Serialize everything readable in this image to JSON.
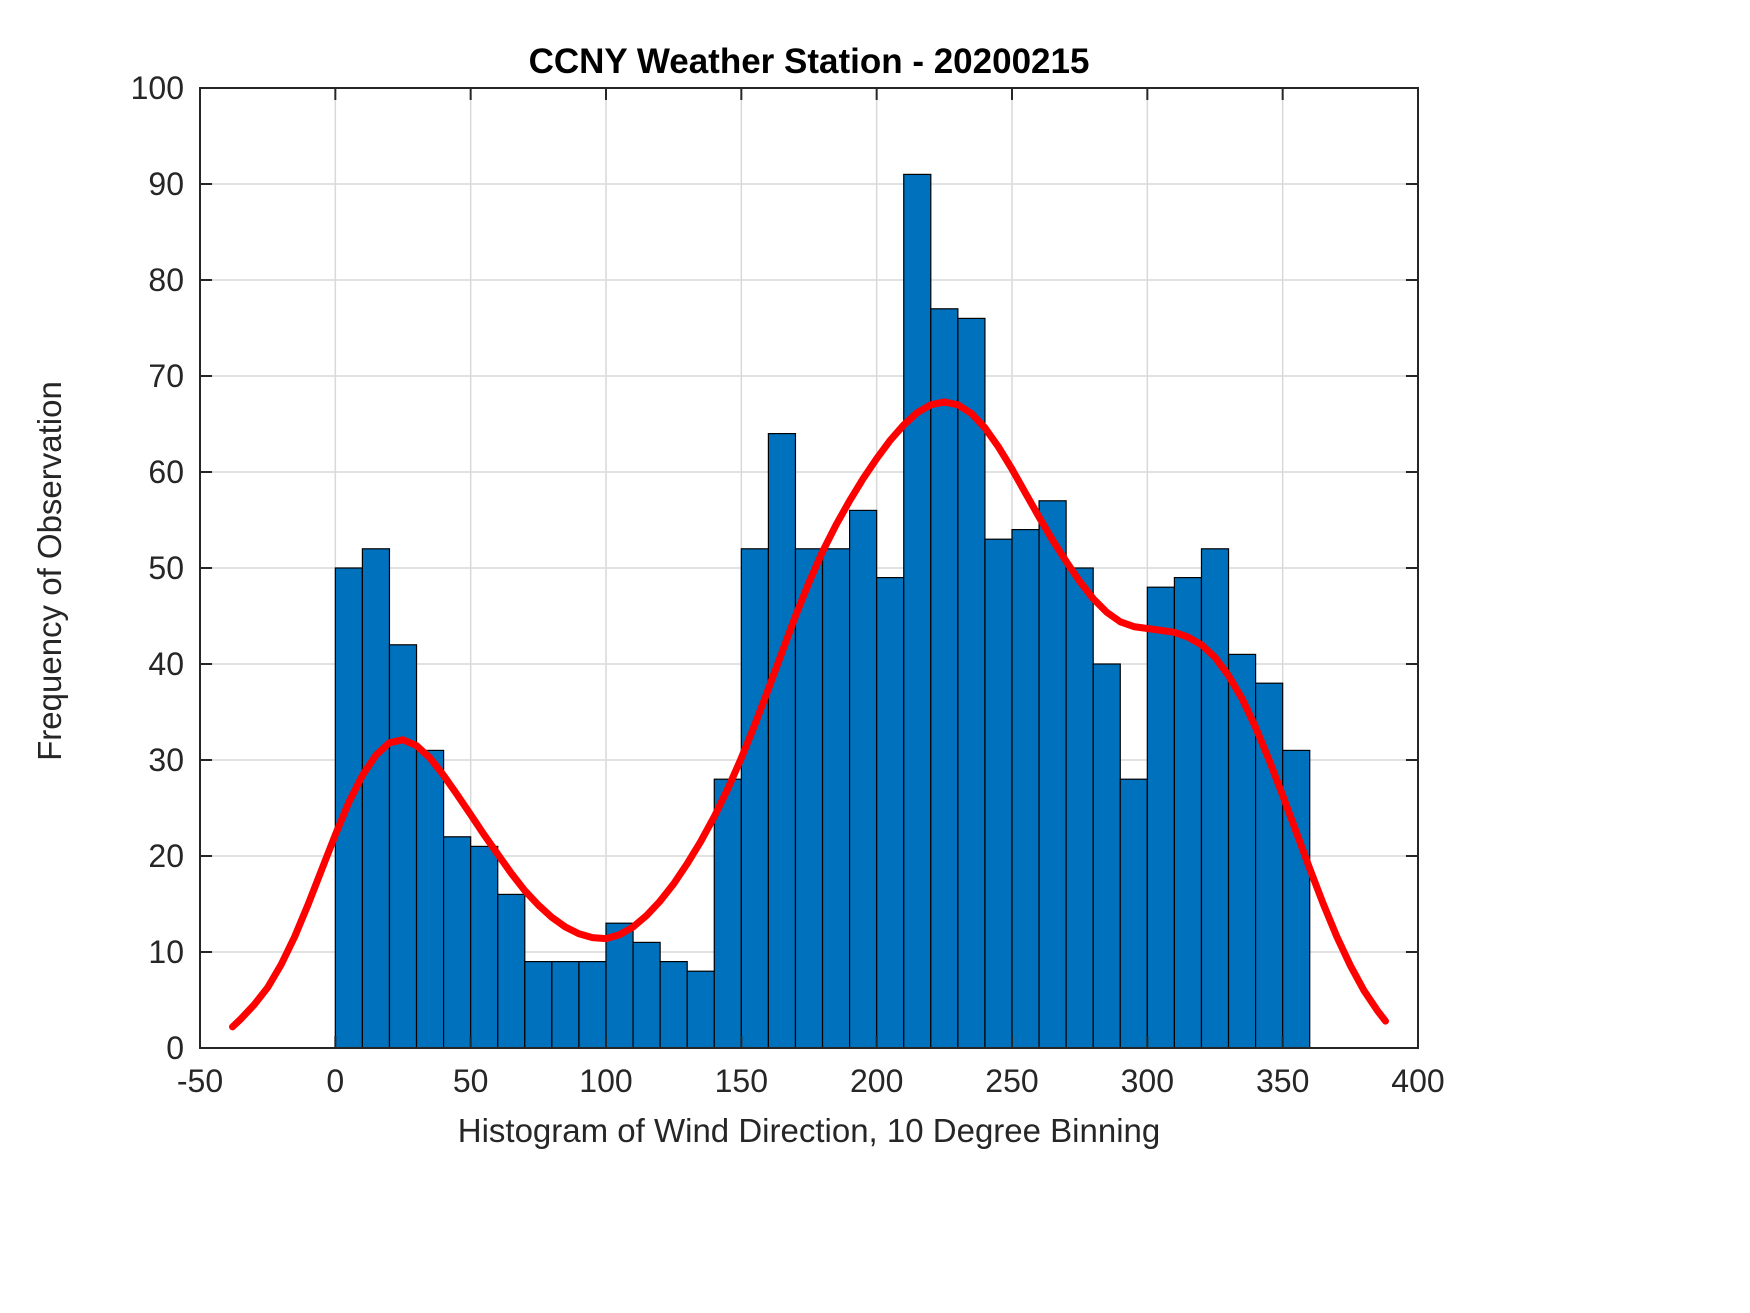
{
  "chart_data": {
    "type": "bar",
    "title": "CCNY Weather Station - 20200215",
    "xlabel": "Histogram of Wind Direction, 10 Degree Binning",
    "ylabel": "Frequency of Observation",
    "xlim": [
      -50,
      400
    ],
    "ylim": [
      0,
      100
    ],
    "x_ticks": [
      -50,
      0,
      50,
      100,
      150,
      200,
      250,
      300,
      350,
      400
    ],
    "y_ticks": [
      0,
      10,
      20,
      30,
      40,
      50,
      60,
      70,
      80,
      90,
      100
    ],
    "grid": true,
    "legend_position": "none",
    "bin_start": 0,
    "bin_width": 10,
    "bar_color": "#0072BD",
    "bar_edge_color": "#000000",
    "grid_color": "#d9d9d9",
    "axis_color": "#262626",
    "values": [
      50,
      52,
      42,
      31,
      22,
      21,
      16,
      9,
      9,
      9,
      13,
      11,
      9,
      8,
      28,
      52,
      64,
      52,
      52,
      56,
      49,
      91,
      77,
      76,
      53,
      54,
      57,
      50,
      40,
      28,
      48,
      49,
      52,
      41,
      38,
      31
    ],
    "fit_curve": {
      "name": "density-fit",
      "color": "#ff0000",
      "width": 7,
      "points": [
        [
          -38,
          2.2
        ],
        [
          -35,
          3.0
        ],
        [
          -30,
          4.5
        ],
        [
          -25,
          6.3
        ],
        [
          -20,
          8.7
        ],
        [
          -15,
          11.6
        ],
        [
          -10,
          15.0
        ],
        [
          -5,
          18.6
        ],
        [
          0,
          22.2
        ],
        [
          5,
          25.6
        ],
        [
          10,
          28.4
        ],
        [
          15,
          30.5
        ],
        [
          20,
          31.8
        ],
        [
          25,
          32.1
        ],
        [
          30,
          31.5
        ],
        [
          35,
          30.2
        ],
        [
          40,
          28.4
        ],
        [
          45,
          26.4
        ],
        [
          50,
          24.3
        ],
        [
          55,
          22.2
        ],
        [
          60,
          20.2
        ],
        [
          65,
          18.2
        ],
        [
          70,
          16.4
        ],
        [
          75,
          14.9
        ],
        [
          80,
          13.6
        ],
        [
          85,
          12.6
        ],
        [
          90,
          11.9
        ],
        [
          95,
          11.5
        ],
        [
          100,
          11.4
        ],
        [
          105,
          11.8
        ],
        [
          110,
          12.6
        ],
        [
          115,
          13.8
        ],
        [
          120,
          15.3
        ],
        [
          125,
          17.1
        ],
        [
          130,
          19.2
        ],
        [
          135,
          21.5
        ],
        [
          140,
          24.1
        ],
        [
          145,
          27.0
        ],
        [
          150,
          30.2
        ],
        [
          155,
          33.7
        ],
        [
          160,
          37.4
        ],
        [
          165,
          41.2
        ],
        [
          170,
          45.0
        ],
        [
          175,
          48.5
        ],
        [
          180,
          51.7
        ],
        [
          185,
          54.5
        ],
        [
          190,
          57.0
        ],
        [
          195,
          59.3
        ],
        [
          200,
          61.4
        ],
        [
          205,
          63.3
        ],
        [
          210,
          64.9
        ],
        [
          215,
          66.2
        ],
        [
          220,
          67.0
        ],
        [
          225,
          67.3
        ],
        [
          230,
          67.0
        ],
        [
          235,
          66.1
        ],
        [
          240,
          64.6
        ],
        [
          245,
          62.6
        ],
        [
          250,
          60.3
        ],
        [
          255,
          57.8
        ],
        [
          260,
          55.3
        ],
        [
          265,
          52.9
        ],
        [
          270,
          50.7
        ],
        [
          275,
          48.6
        ],
        [
          280,
          46.8
        ],
        [
          285,
          45.4
        ],
        [
          290,
          44.4
        ],
        [
          295,
          43.9
        ],
        [
          300,
          43.7
        ],
        [
          305,
          43.5
        ],
        [
          310,
          43.3
        ],
        [
          315,
          42.8
        ],
        [
          320,
          42.0
        ],
        [
          325,
          40.7
        ],
        [
          330,
          38.8
        ],
        [
          335,
          36.4
        ],
        [
          340,
          33.4
        ],
        [
          345,
          30.0
        ],
        [
          350,
          26.3
        ],
        [
          355,
          22.5
        ],
        [
          360,
          18.7
        ],
        [
          365,
          15.0
        ],
        [
          370,
          11.6
        ],
        [
          375,
          8.6
        ],
        [
          380,
          6.0
        ],
        [
          385,
          3.9
        ],
        [
          388,
          2.8
        ]
      ]
    }
  }
}
